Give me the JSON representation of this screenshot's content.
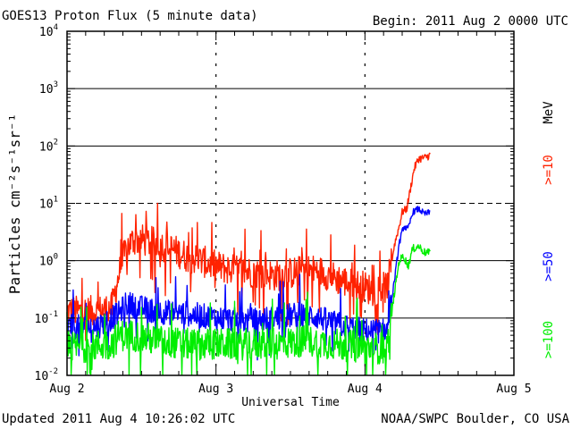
{
  "header": {
    "title": "GOES13 Proton Flux (5 minute data)",
    "begin": "Begin: 2011 Aug 2 0000 UTC"
  },
  "footer": {
    "updated": "Updated 2011 Aug  4 10:26:02 UTC",
    "credit": "NOAA/SWPC Boulder, CO USA"
  },
  "chart_data": {
    "type": "line",
    "title": "GOES13 Proton Flux (5 minute data)",
    "xlabel": "Universal Time",
    "ylabel": "Particles cm⁻²s⁻¹sr⁻¹",
    "y_scale": "log",
    "ylim_exponents": [
      -2,
      4
    ],
    "y_ticks": [
      {
        "exp": -2,
        "base": "10",
        "sup": "-2"
      },
      {
        "exp": -1,
        "base": "10",
        "sup": "-1"
      },
      {
        "exp": 0,
        "base": "10",
        "sup": "0"
      },
      {
        "exp": 1,
        "base": "10",
        "sup": "1"
      },
      {
        "exp": 2,
        "base": "10",
        "sup": "2"
      },
      {
        "exp": 3,
        "base": "10",
        "sup": "3"
      },
      {
        "exp": 4,
        "base": "10",
        "sup": "4"
      }
    ],
    "x_range_days": [
      0,
      3
    ],
    "x_ticks": [
      {
        "day": 0,
        "label": "Aug 2"
      },
      {
        "day": 1,
        "label": "Aug 3"
      },
      {
        "day": 2,
        "label": "Aug 4"
      },
      {
        "day": 3,
        "label": "Aug 5"
      }
    ],
    "threshold_exponent": 1,
    "right_axis_unit": "MeV",
    "grid": "horizontal lines at each decade; dashed line at 10^1",
    "series": [
      {
        "name": ">=10",
        "color": "#ff2200",
        "noise": 0.28,
        "points": [
          [
            0.0,
            0.13
          ],
          [
            0.2,
            0.13
          ],
          [
            0.3,
            0.15
          ],
          [
            0.35,
            0.6
          ],
          [
            0.4,
            1.7
          ],
          [
            0.45,
            2.3
          ],
          [
            0.5,
            2.3
          ],
          [
            0.6,
            2.0
          ],
          [
            0.7,
            1.6
          ],
          [
            0.8,
            1.2
          ],
          [
            0.9,
            1.0
          ],
          [
            1.0,
            0.8
          ],
          [
            1.1,
            0.7
          ],
          [
            1.2,
            0.65
          ],
          [
            1.3,
            0.6
          ],
          [
            1.4,
            0.55
          ],
          [
            1.5,
            0.6
          ],
          [
            1.6,
            0.7
          ],
          [
            1.7,
            0.65
          ],
          [
            1.8,
            0.5
          ],
          [
            1.9,
            0.4
          ],
          [
            2.0,
            0.35
          ],
          [
            2.05,
            0.3
          ],
          [
            2.15,
            0.35
          ],
          [
            2.2,
            2.0
          ],
          [
            2.23,
            4.0
          ],
          [
            2.25,
            7.0
          ],
          [
            2.28,
            8.0
          ],
          [
            2.3,
            15
          ],
          [
            2.33,
            40
          ],
          [
            2.36,
            60
          ],
          [
            2.4,
            62
          ],
          [
            2.44,
            70
          ]
        ]
      },
      {
        "name": ">=50",
        "color": "#0000ff",
        "noise": 0.22,
        "points": [
          [
            0.0,
            0.07
          ],
          [
            0.2,
            0.07
          ],
          [
            0.35,
            0.12
          ],
          [
            0.4,
            0.18
          ],
          [
            0.5,
            0.15
          ],
          [
            0.6,
            0.13
          ],
          [
            0.8,
            0.12
          ],
          [
            1.0,
            0.1
          ],
          [
            1.2,
            0.09
          ],
          [
            1.4,
            0.1
          ],
          [
            1.5,
            0.11
          ],
          [
            1.6,
            0.12
          ],
          [
            1.7,
            0.1
          ],
          [
            1.8,
            0.08
          ],
          [
            2.0,
            0.06
          ],
          [
            2.15,
            0.06
          ],
          [
            2.2,
            0.5
          ],
          [
            2.23,
            2.0
          ],
          [
            2.26,
            4.0
          ],
          [
            2.29,
            3.5
          ],
          [
            2.32,
            7.0
          ],
          [
            2.36,
            8.0
          ],
          [
            2.4,
            6.5
          ],
          [
            2.44,
            7.0
          ]
        ]
      },
      {
        "name": ">=100",
        "color": "#00ee00",
        "noise": 0.28,
        "points": [
          [
            0.0,
            0.03
          ],
          [
            0.3,
            0.035
          ],
          [
            0.35,
            0.05
          ],
          [
            0.45,
            0.05
          ],
          [
            0.6,
            0.04
          ],
          [
            0.8,
            0.035
          ],
          [
            1.0,
            0.035
          ],
          [
            1.4,
            0.035
          ],
          [
            1.6,
            0.04
          ],
          [
            1.8,
            0.035
          ],
          [
            2.0,
            0.03
          ],
          [
            2.15,
            0.03
          ],
          [
            2.2,
            0.3
          ],
          [
            2.23,
            1.0
          ],
          [
            2.26,
            1.2
          ],
          [
            2.29,
            0.8
          ],
          [
            2.32,
            1.6
          ],
          [
            2.36,
            1.8
          ],
          [
            2.4,
            1.4
          ],
          [
            2.44,
            1.35
          ]
        ]
      }
    ]
  }
}
